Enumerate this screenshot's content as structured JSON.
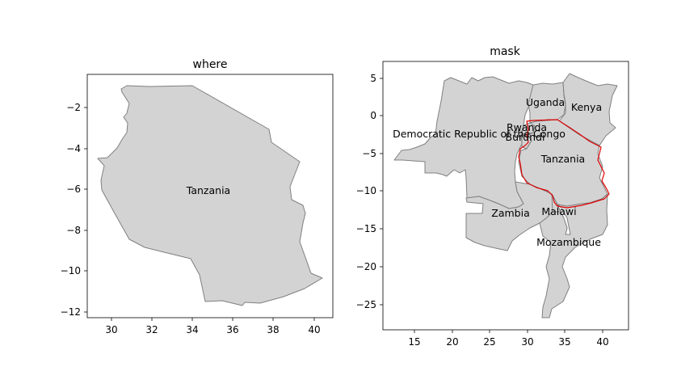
{
  "figure": {
    "left_panel": {
      "title": "where",
      "x_ticks": [
        "30",
        "32",
        "34",
        "36",
        "38",
        "40"
      ],
      "y_ticks": [
        "−2",
        "−4",
        "−6",
        "−8",
        "−10",
        "−12"
      ],
      "country_label": "Tanzania"
    },
    "right_panel": {
      "title": "mask",
      "x_ticks": [
        "15",
        "20",
        "25",
        "30",
        "35",
        "40"
      ],
      "y_ticks": [
        "5",
        "0",
        "−5",
        "−10",
        "−15",
        "−20",
        "−25"
      ],
      "country_labels": {
        "uganda": "Uganda",
        "kenya": "Kenya",
        "rwanda": "Rwanda",
        "burundi": "Burundi",
        "drc": "Democratic Republic of the Congo",
        "tanzania": "Tanzania",
        "zambia": "Zambia",
        "malawi": "Malawi",
        "mozambique": "Mozambique"
      }
    }
  },
  "colors": {
    "fill": "#d3d3d3",
    "edge": "#808080",
    "mask_outline": "#e00000"
  }
}
